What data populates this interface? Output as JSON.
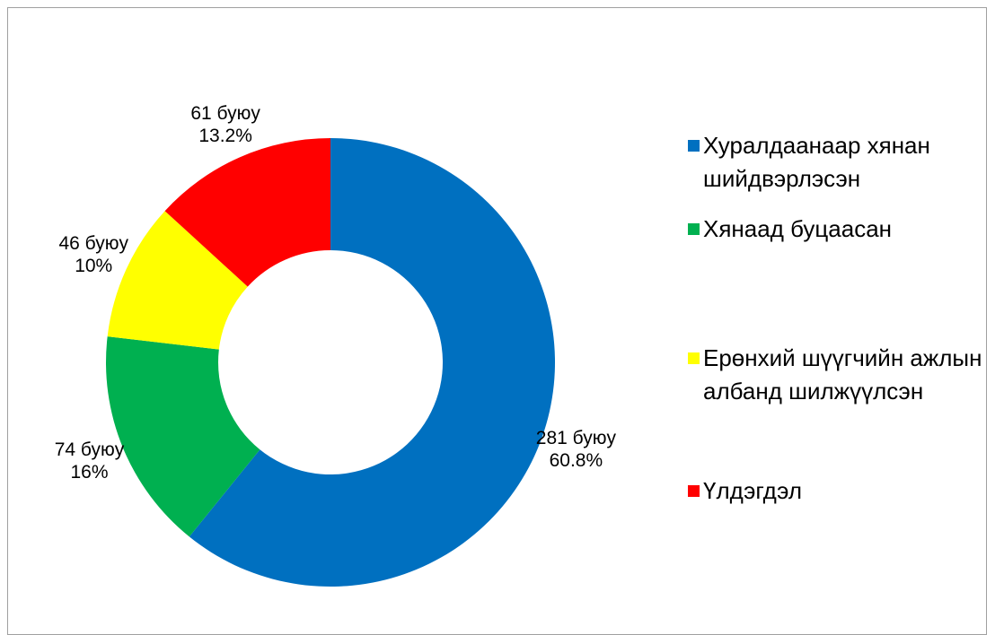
{
  "chart_data": {
    "type": "donut",
    "categories": [
      "Хуралдаанаар хянан шийдвэрлэсэн",
      "Хянаад буцаасан",
      "Ерөнхий шүүгчийн ажлын албанд шилжүүлсэн",
      "Үлдэгдэл"
    ],
    "values": [
      281,
      74,
      46,
      61
    ],
    "value_labels": [
      "281 буюу 60.8%",
      "74 буюу 16%",
      "46 буюу 10%",
      "61 буюу 13.2%"
    ],
    "colors": [
      "#0070c0",
      "#00b050",
      "#ffff00",
      "#ff0000"
    ],
    "legend": "right"
  }
}
